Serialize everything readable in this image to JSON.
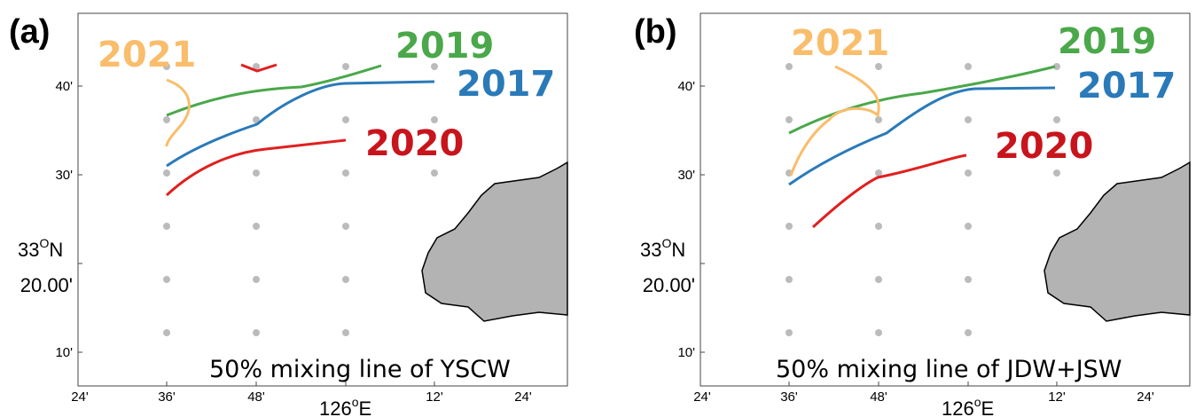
{
  "panels": [
    {
      "label": "(a)",
      "caption": "50% mixing line of YSCW",
      "years": [
        "2021",
        "2019",
        "2017",
        "2020"
      ]
    },
    {
      "label": "(b)",
      "caption": "50% mixing line of JDW+JSW",
      "years": [
        "2021",
        "2019",
        "2017",
        "2020"
      ]
    }
  ],
  "x_ticks": [
    "24'",
    "36'",
    "48'",
    {
      "deg": "126",
      "sup": "o",
      "hemi": "E"
    },
    "12'",
    "24'"
  ],
  "y_ticks": [
    "40'",
    "30'",
    {
      "deg": "33",
      "sup": "O",
      "hemi": "N",
      "minutes": "20.00'"
    },
    "10'"
  ]
}
